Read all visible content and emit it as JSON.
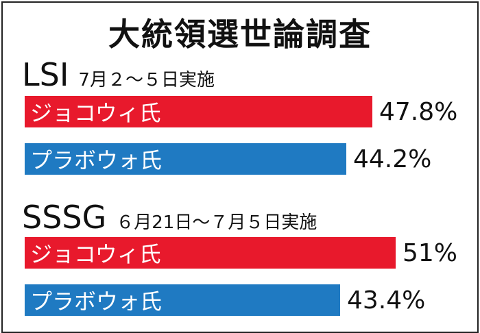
{
  "title": "大統領選世論調査",
  "colors": {
    "jokowi": "#e8192c",
    "prabowo": "#1f7ac2"
  },
  "chart_data": [
    {
      "type": "bar",
      "pollster": "LSI",
      "period": "7月２～５日実施",
      "categories": [
        "ジョコウィ氏",
        "プラボウォ氏"
      ],
      "values": [
        47.8,
        44.2
      ],
      "value_labels": [
        "47.8%",
        "44.2%"
      ],
      "xlim": [
        0,
        50
      ]
    },
    {
      "type": "bar",
      "pollster": "SSSG",
      "period": "６月21日～７月５日実施",
      "categories": [
        "ジョコウィ氏",
        "プラボウォ氏"
      ],
      "values": [
        51,
        43.4
      ],
      "value_labels": [
        "51%",
        "43.4%"
      ],
      "xlim": [
        0,
        50
      ]
    }
  ]
}
